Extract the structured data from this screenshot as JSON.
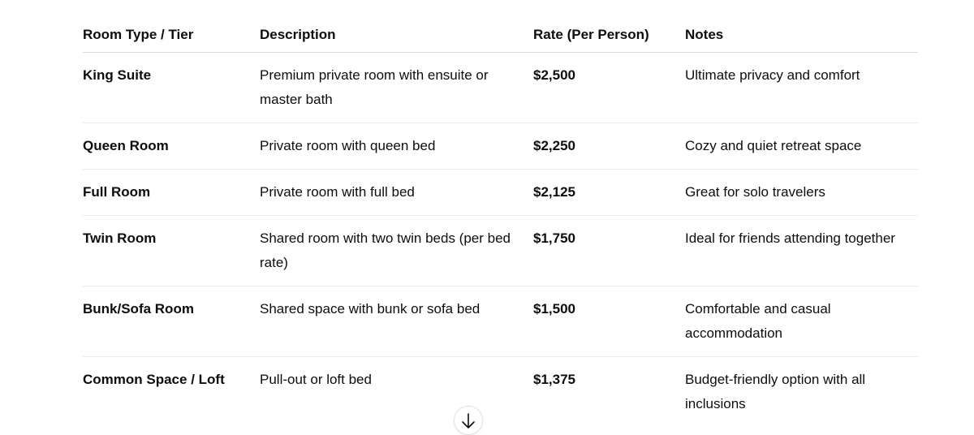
{
  "table": {
    "headers": [
      "Room Type / Tier",
      "Description",
      "Rate (Per Person)",
      "Notes"
    ],
    "rows": [
      {
        "room": "King Suite",
        "description": "Premium private room with ensuite or master bath",
        "rate": "$2,500",
        "notes": "Ultimate privacy and comfort"
      },
      {
        "room": "Queen Room",
        "description": "Private room with queen bed",
        "rate": "$2,250",
        "notes": "Cozy and quiet retreat space"
      },
      {
        "room": "Full Room",
        "description": "Private room with full bed",
        "rate": "$2,125",
        "notes": "Great for solo travelers"
      },
      {
        "room": "Twin Room",
        "description": "Shared room with two twin beds (per bed rate)",
        "rate": "$1,750",
        "notes": "Ideal for friends attending together"
      },
      {
        "room": "Bunk/Sofa Room",
        "description": "Shared space with bunk or sofa bed",
        "rate": "$1,500",
        "notes": "Comfortable and casual accommodation"
      },
      {
        "room": "Common Space / Loft",
        "description": "Pull-out or loft bed",
        "rate": "$1,375",
        "notes": "Budget-friendly option with all inclusions"
      }
    ]
  },
  "scroll_button": {
    "icon": "arrow-down-icon"
  }
}
